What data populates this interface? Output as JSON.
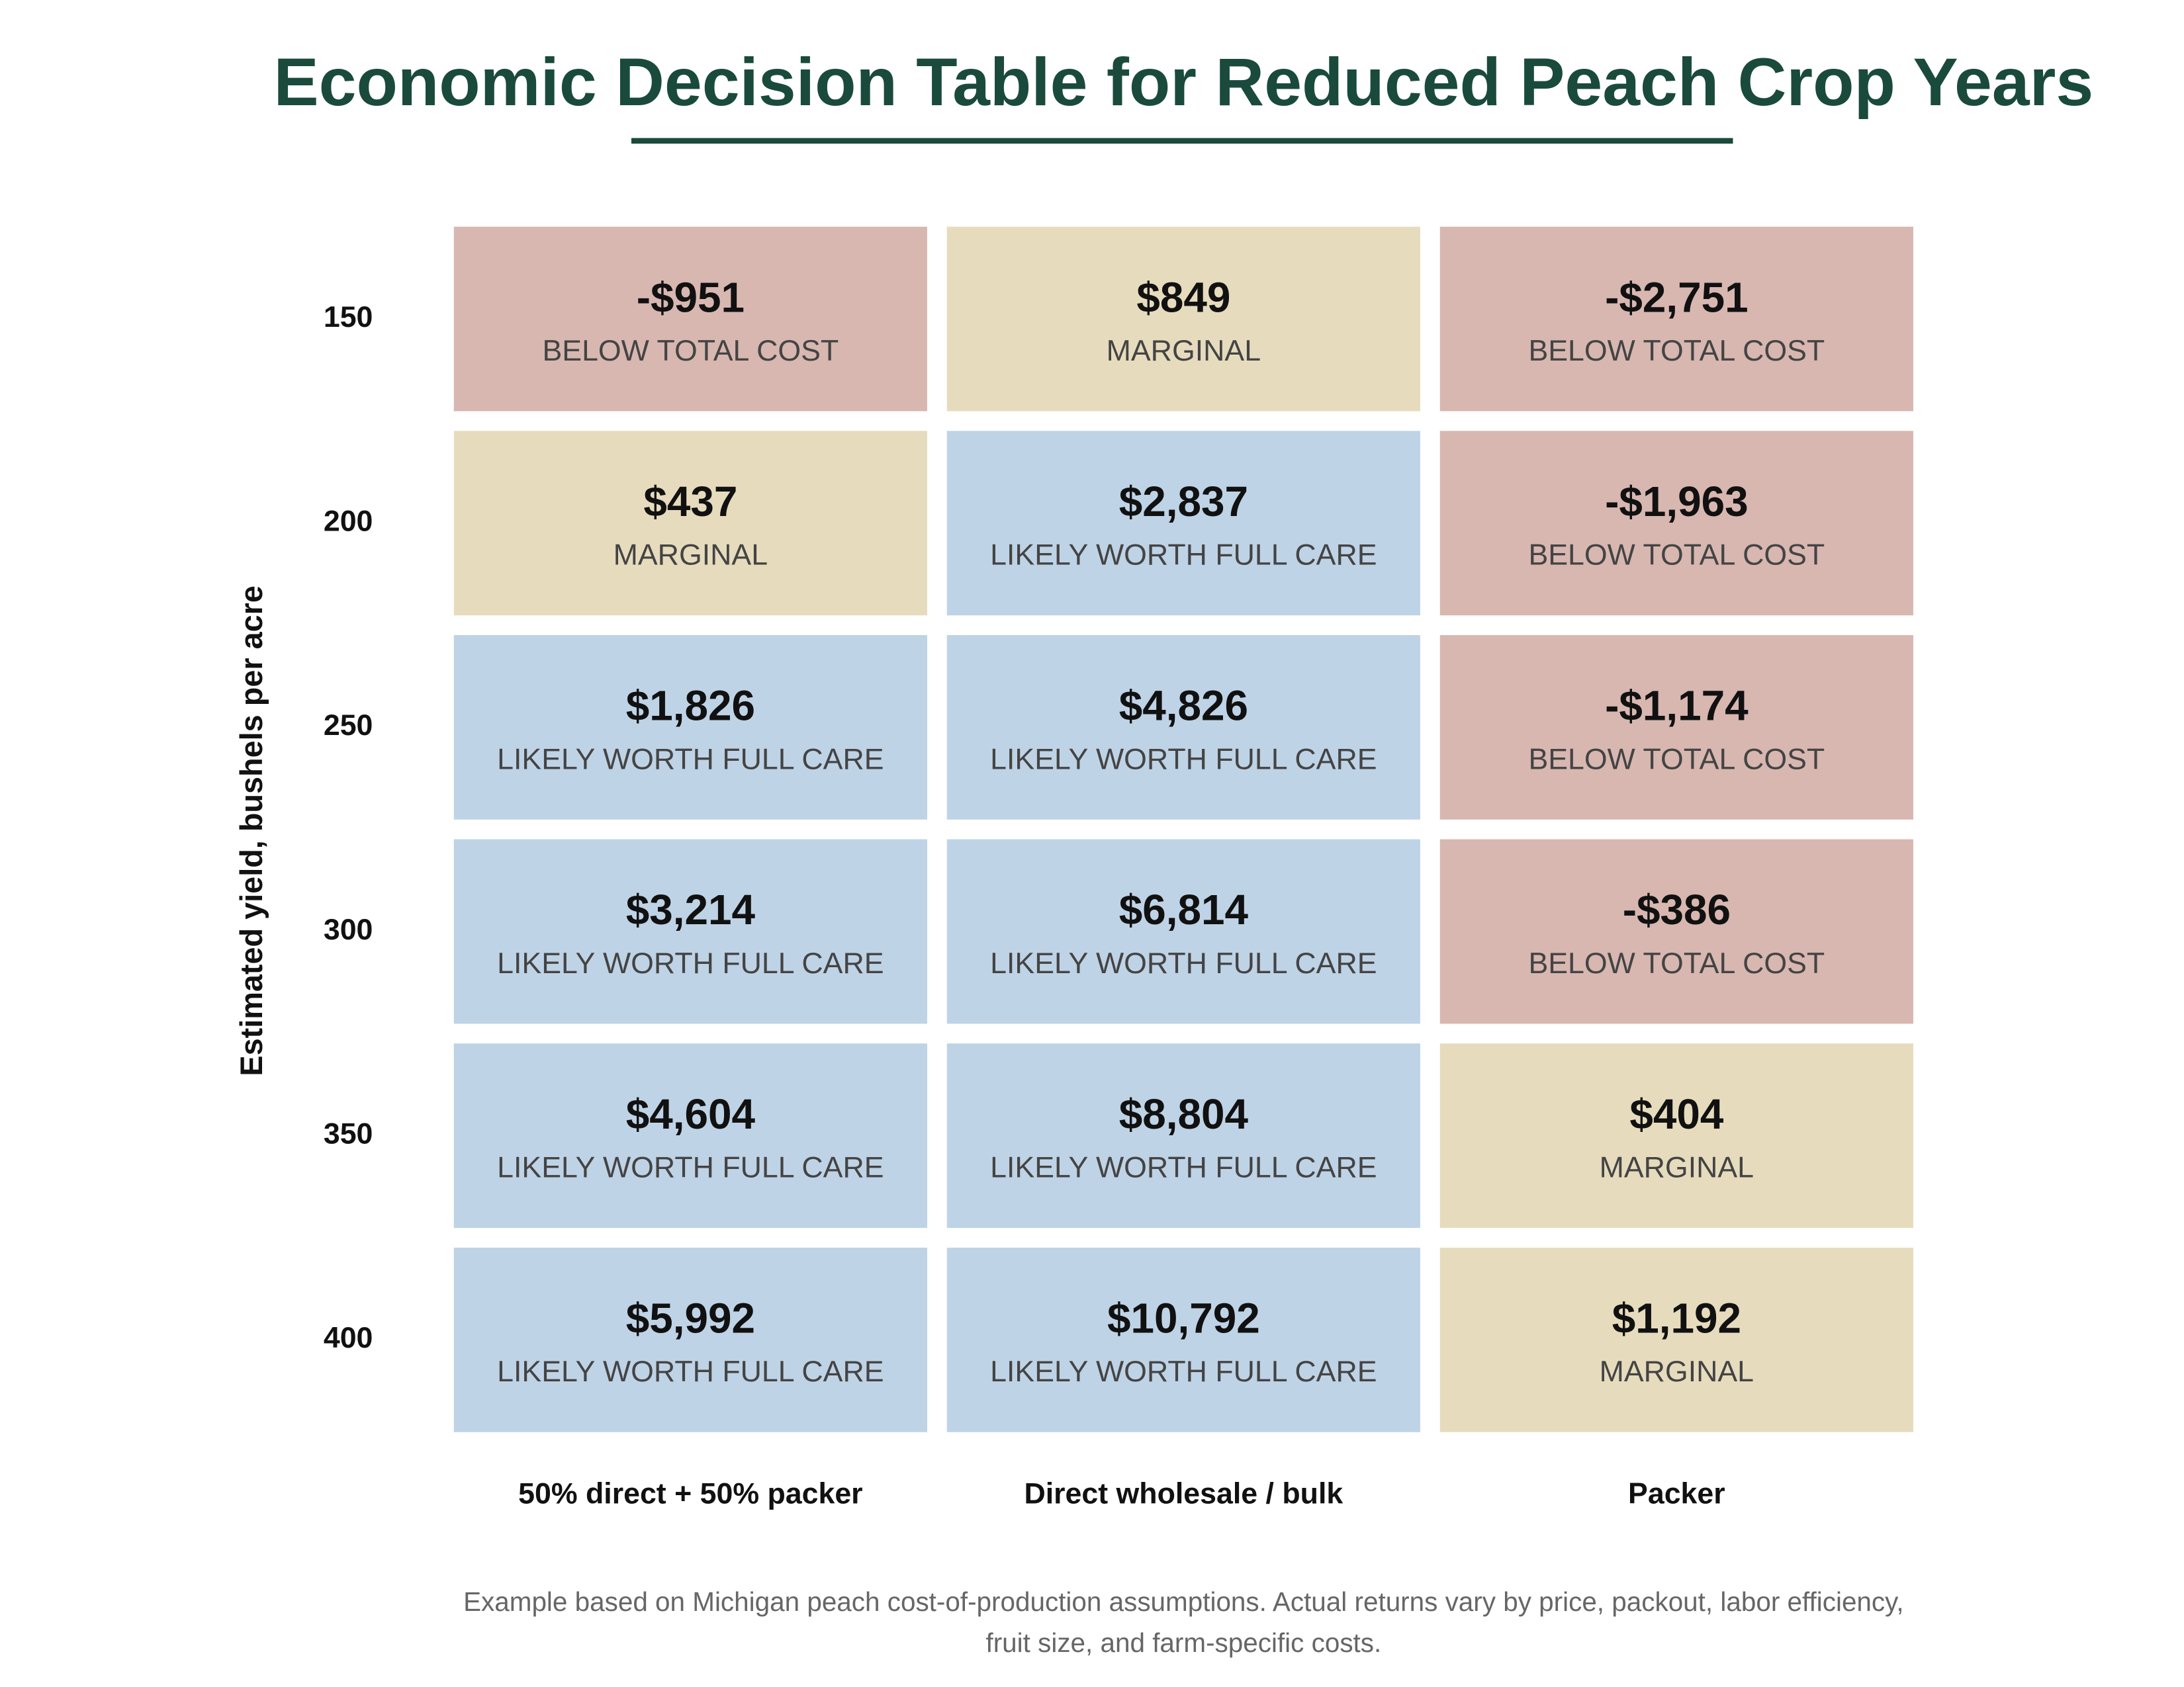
{
  "chart_data": {
    "type": "heatmap",
    "title": "Economic Decision Table for Reduced Peach Crop Years",
    "y_label": "Estimated yield, bushels per acre",
    "x_categories": [
      "50% direct + 50% packer",
      "Direct wholesale / bulk",
      "Packer"
    ],
    "y_categories": [
      150,
      200,
      250,
      300,
      350,
      400
    ],
    "values": [
      [
        -951,
        849,
        -2751
      ],
      [
        437,
        2837,
        -1963
      ],
      [
        1826,
        4826,
        -1174
      ],
      [
        3214,
        6814,
        -386
      ],
      [
        4604,
        8804,
        404
      ],
      [
        5992,
        10792,
        1192
      ]
    ],
    "value_labels": [
      [
        "-$951",
        "$849",
        "-$2,751"
      ],
      [
        "$437",
        "$2,837",
        "-$1,963"
      ],
      [
        "$1,826",
        "$4,826",
        "-$1,174"
      ],
      [
        "$3,214",
        "$6,814",
        "-$386"
      ],
      [
        "$4,604",
        "$8,804",
        "$404"
      ],
      [
        "$5,992",
        "$10,792",
        "$1,192"
      ]
    ],
    "status_labels": [
      [
        "BELOW TOTAL COST",
        "MARGINAL",
        "BELOW TOTAL COST"
      ],
      [
        "MARGINAL",
        "LIKELY WORTH FULL CARE",
        "BELOW TOTAL COST"
      ],
      [
        "LIKELY WORTH FULL CARE",
        "LIKELY WORTH FULL CARE",
        "BELOW TOTAL COST"
      ],
      [
        "LIKELY WORTH FULL CARE",
        "LIKELY WORTH FULL CARE",
        "BELOW TOTAL COST"
      ],
      [
        "LIKELY WORTH FULL CARE",
        "LIKELY WORTH FULL CARE",
        "MARGINAL"
      ],
      [
        "LIKELY WORTH FULL CARE",
        "LIKELY WORTH FULL CARE",
        "MARGINAL"
      ]
    ],
    "colors": [
      [
        "#d8b7b1",
        "#e6dcbd",
        "#d8b7b1"
      ],
      [
        "#e6dcbd",
        "#bfd3e6",
        "#d8b7b1"
      ],
      [
        "#bfd3e6",
        "#bfd3e6",
        "#d8b7b1"
      ],
      [
        "#bfd3e6",
        "#bfd3e6",
        "#d8b7b1"
      ],
      [
        "#bfd3e6",
        "#bfd3e6",
        "#e6dcbd"
      ],
      [
        "#bfd3e6",
        "#bfd3e6",
        "#e6dcbd"
      ]
    ],
    "footnote": [
      "Example based on Michigan peach cost-of-production assumptions. Actual returns vary by price, packout, labor efficiency,",
      "fruit size, and farm-specific costs."
    ]
  }
}
